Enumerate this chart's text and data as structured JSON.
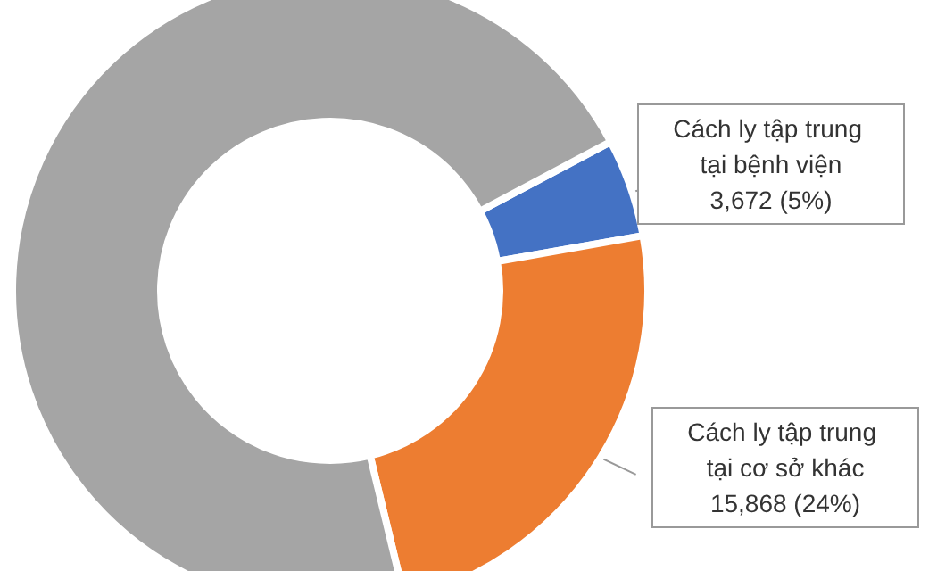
{
  "chart_data": {
    "type": "donut",
    "categories": [
      "Cách ly tập trung tại bệnh viện",
      "Cách ly tập trung tại cơ sở khác",
      null
    ],
    "values": [
      5,
      24,
      71
    ],
    "value_labels": [
      "3,672 (5%)",
      "15,868 (24%)",
      null
    ],
    "colors": [
      "#4472c4",
      "#ed7d31",
      "#a5a5a5"
    ],
    "legend": false
  }
}
